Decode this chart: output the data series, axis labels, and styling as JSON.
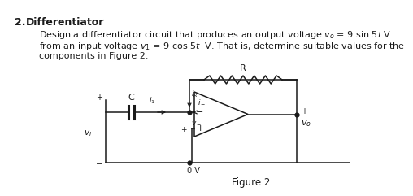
{
  "title_num": "2.",
  "title_text": "  Differentiator",
  "line1": "     Design a differentiator circuit that produces an output voltage $v_o$ = 9 sin 5$t$ V",
  "line2": "     from an input voltage $v_1$ = 9 cos 5$t$  V. That is, determine suitable values for the",
  "line3": "     components in Figure 2.",
  "fig_label": "Figure 2",
  "ground_label": "0 V",
  "bg_color": "#ffffff",
  "text_color": "#1a1a1a",
  "circuit_color": "#1a1a1a"
}
